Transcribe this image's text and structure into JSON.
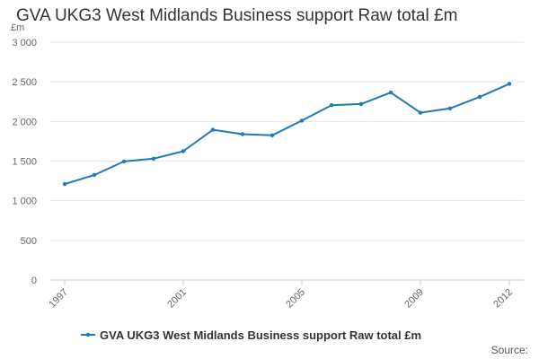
{
  "chart_data": {
    "type": "line",
    "title": "GVA UKG3 West Midlands Business support Raw total £m",
    "ylabel": "£m",
    "xlabel": "",
    "x": [
      1997,
      1998,
      1999,
      2000,
      2001,
      2002,
      2003,
      2004,
      2005,
      2006,
      2007,
      2008,
      2009,
      2010,
      2011,
      2012
    ],
    "x_tick_labels": [
      "1997",
      "2001",
      "2005",
      "2009",
      "2012"
    ],
    "x_tick_values": [
      1997,
      2001,
      2005,
      2009,
      2012
    ],
    "y_tick_labels": [
      "0",
      "500",
      "1 000",
      "1 500",
      "2 000",
      "2 500",
      "3 000"
    ],
    "y_tick_values": [
      0,
      500,
      1000,
      1500,
      2000,
      2500,
      3000
    ],
    "ylim": [
      0,
      3000
    ],
    "grid": "horizontal",
    "legend_position": "bottom",
    "series": [
      {
        "name": "GVA UKG3 West Midlands Business support Raw total £m",
        "color": "#1f7ab8",
        "values": [
          1210,
          1325,
          1495,
          1530,
          1625,
          1895,
          1840,
          1825,
          2010,
          2205,
          2220,
          2365,
          2110,
          2165,
          2310,
          2475
        ]
      }
    ],
    "source_text": "Source:"
  }
}
